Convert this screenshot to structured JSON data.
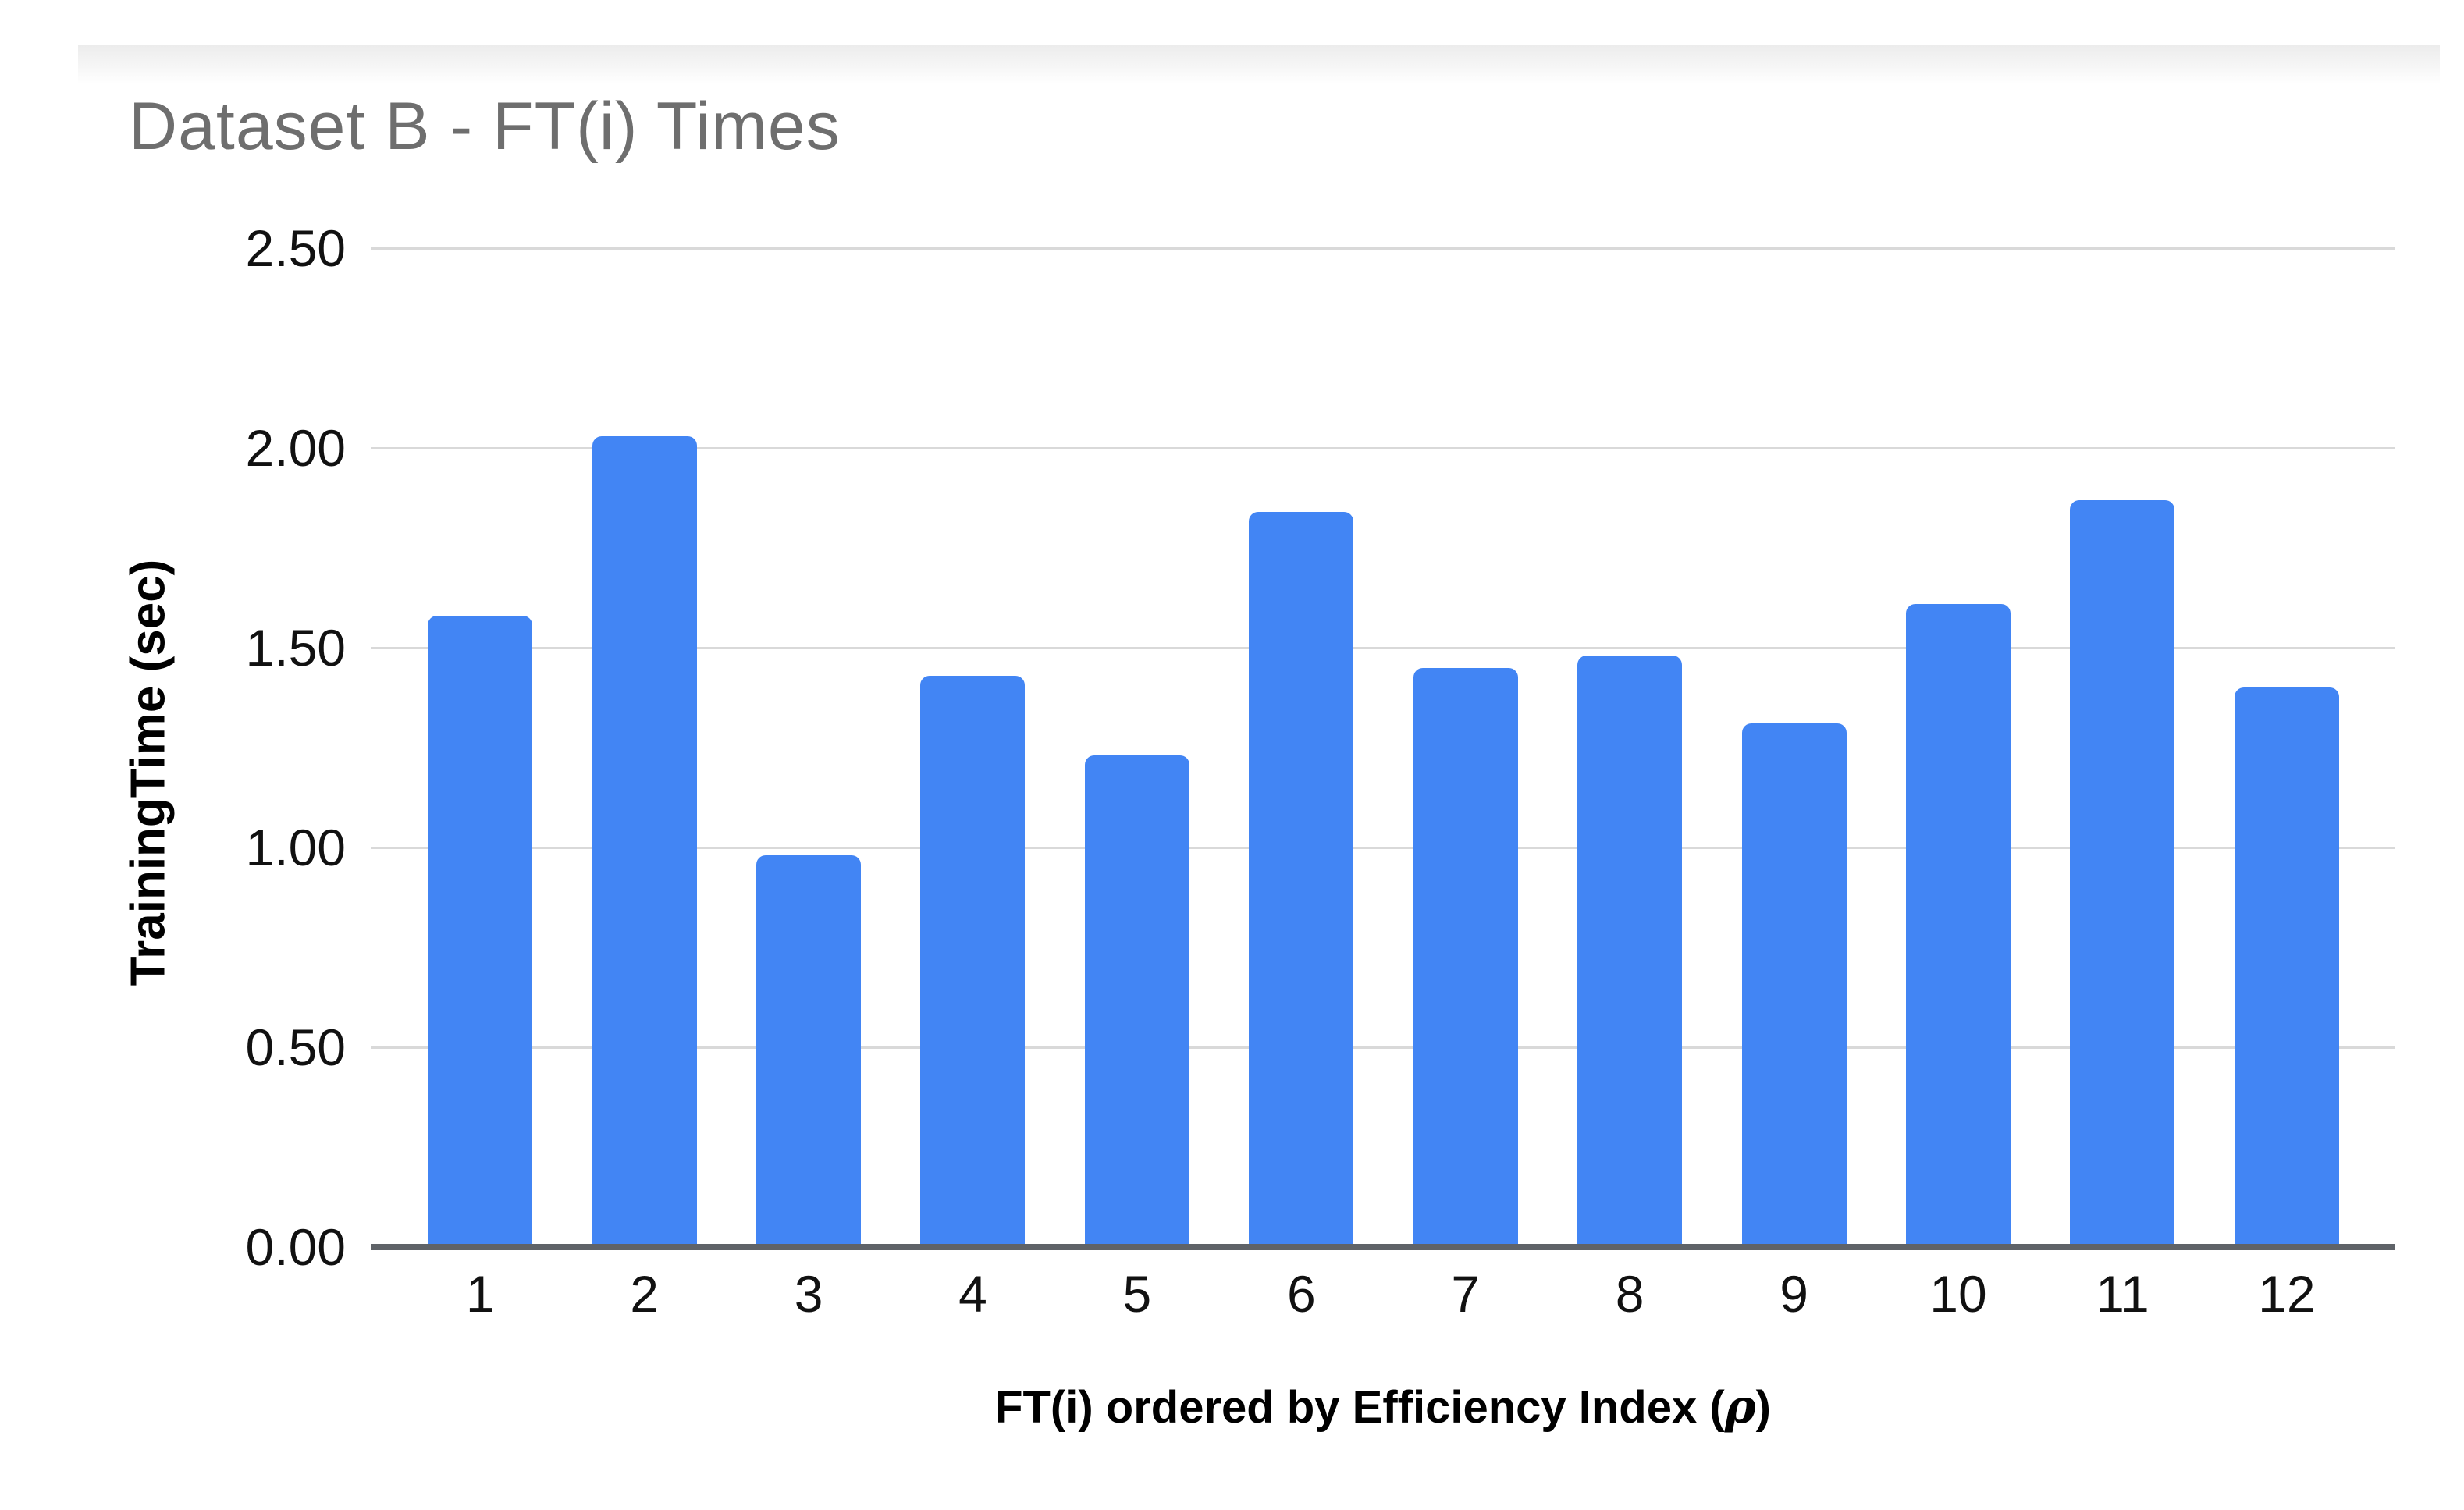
{
  "chart_data": {
    "type": "bar",
    "title": "Dataset B - FT(i) Times",
    "categories": [
      "1",
      "2",
      "3",
      "4",
      "5",
      "6",
      "7",
      "8",
      "9",
      "10",
      "11",
      "12"
    ],
    "values": [
      1.58,
      2.03,
      0.98,
      1.43,
      1.23,
      1.84,
      1.45,
      1.48,
      1.31,
      1.61,
      1.87,
      1.4
    ],
    "series_name": "TrainingTime",
    "xlabel": "FT(i) ordered by Efficiency Index (ρ)",
    "ylabel": "TrainingTime (sec)",
    "ylim": [
      0,
      2.5
    ],
    "yticks": [
      0,
      0.5,
      1.0,
      1.5,
      2.0,
      2.5
    ],
    "ytick_labels": [
      "0.00",
      "0.50",
      "1.00",
      "1.50",
      "2.00",
      "2.50"
    ],
    "grid": true,
    "legend_position": "none",
    "bar_color": "#4285f4",
    "gridline_color": "#d9d9d9",
    "axis_line_color": "#5f6368",
    "title_color": "#6e6e6e",
    "tick_label_color": "#111111"
  },
  "xlabel_parts": {
    "prefix": "FT(i) ordered by Efficiency Index (",
    "rho": "ρ",
    "suffix": ")"
  }
}
